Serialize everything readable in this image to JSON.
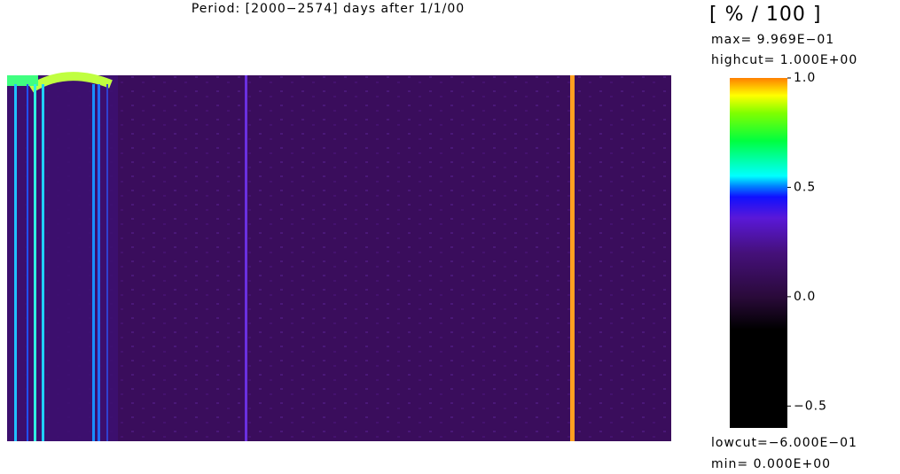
{
  "chart_data": {
    "type": "heatmap",
    "title": "Period: [2000−2574] days after 1/1/00",
    "colorbar": {
      "unit": "[ % / 100 ]",
      "max_label": "max= 9.969E−01",
      "highcut_label": "highcut= 1.000E+00",
      "lowcut_label": "lowcut=−6.000E−01",
      "min_label": "min= 0.000E+00",
      "ylim": [
        -0.6,
        1.0
      ],
      "yticks": [
        {
          "value": -0.5,
          "label": "−0.5"
        },
        {
          "value": 0,
          "label": "0.0"
        },
        0.5,
        {
          "value": 1,
          "label": "1.0"
        }
      ]
    }
  }
}
